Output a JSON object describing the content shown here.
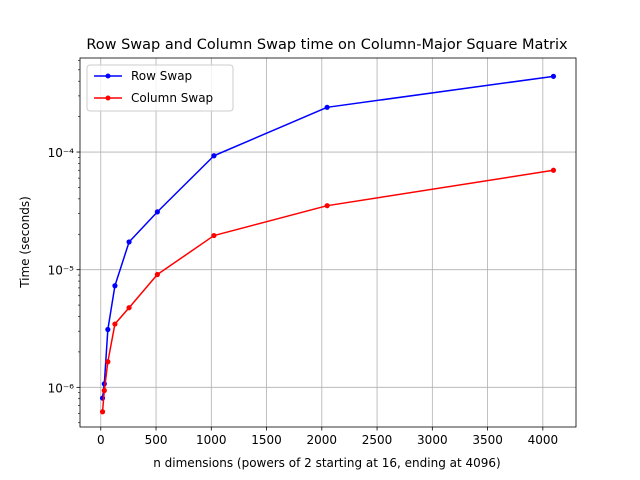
{
  "chart_data": {
    "type": "line",
    "title": "Row Swap and Column Swap time on Column-Major Square Matrix",
    "xlabel": "n dimensions (powers of 2 starting at 16, ending at 4096)",
    "ylabel": "Time (seconds)",
    "x": [
      16,
      32,
      64,
      128,
      256,
      512,
      1024,
      2048,
      4096
    ],
    "xlim": [
      -188,
      4300
    ],
    "ylim": [
      4.6e-07,
      0.00063
    ],
    "yscale": "log",
    "xticks": [
      0,
      500,
      1000,
      1500,
      2000,
      2500,
      3000,
      3500,
      4000
    ],
    "xtick_labels": [
      "0",
      "500",
      "1000",
      "1500",
      "2000",
      "2500",
      "3000",
      "3500",
      "4000"
    ],
    "yticks": [
      1e-06,
      1e-05,
      0.0001
    ],
    "ytick_labels": [
      "10⁻⁶",
      "10⁻⁵",
      "10⁻⁴"
    ],
    "grid": true,
    "legend_position": "upper-left",
    "series": [
      {
        "name": "Row Swap",
        "color": "#0000ff",
        "values": [
          8.1e-07,
          1.07e-06,
          3.1e-06,
          7.3e-06,
          1.72e-05,
          3.1e-05,
          9.3e-05,
          0.00024,
          0.00044
        ]
      },
      {
        "name": "Column Swap",
        "color": "#ff0000",
        "values": [
          6.2e-07,
          9.4e-07,
          1.65e-06,
          3.45e-06,
          4.75e-06,
          9.1e-06,
          1.95e-05,
          3.5e-05,
          7e-05
        ]
      }
    ]
  }
}
